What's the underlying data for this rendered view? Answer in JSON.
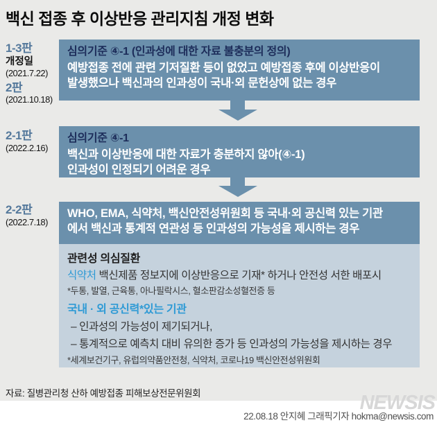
{
  "title": "백신 접종 후 이상반응 관리지침 개정 변화",
  "colors": {
    "background": "#eaeae8",
    "box_blue": "#6b90ac",
    "box_light": "#c5d2dd",
    "navy_text": "#1d2d5a",
    "accent_blue": "#2e9ad5",
    "label_blue": "#55799c",
    "footer_strip": "#ffffff"
  },
  "sections": [
    {
      "labels": [
        {
          "text": "1-3판"
        },
        {
          "text": "개정일"
        },
        {
          "text": "(2021.7.22)"
        },
        {
          "text": "2판"
        },
        {
          "text": "(2021.10.18)"
        }
      ],
      "box": {
        "header": "심의기준 ④-1 (인과성에 대한 자료 불충분의 정의)",
        "body": "예방접종 전에 관련 기저질환 등이 없었고 예방접종 후에 이상반응이\n발생했으나 백신과의 인과성이 국내·외 문헌상에 없는 경우"
      }
    },
    {
      "labels": [
        {
          "text": "2-1판"
        },
        {
          "text": "(2022.2.16)"
        }
      ],
      "box": {
        "header": "심의기준 ④-1",
        "body": "백신과 이상반응에 대한 자료가 충분하지 않아(④-1)\n인과성이 인정되기 어려운 경우"
      }
    },
    {
      "labels": [
        {
          "text": "2-2판"
        },
        {
          "text": "(2022.7.18)"
        }
      ],
      "box": {
        "body": "WHO, EMA, 식약처, 백신안전성위원회 등 국내·외 공신력 있는 기관\n에서 백신과 통계적 연관성 등 인과성의 가능성을 제시하는 경우"
      },
      "detail": {
        "heading": "관련성 의심질환",
        "line1_accent": "식약처",
        "line1_rest": " 백신제품 정보지에 이상반응으로 기재* 하거나 안전성 서한 배포시",
        "footnote1": "*두통, 발열, 근육통, 아나필락시스, 혈소판감소성혈전증 등",
        "subheading": "국내 · 외 공신력*있는 기관",
        "bullet1": "– 인과성의 가능성이 제기되거나,",
        "bullet2": "– 통계적으로 예측치 대비 유의한 증가 등 인과성의 가능성을 제시하는 경우",
        "footnote2": "*세계보건기구, 유럽의약품안전청, 식약처, 코로나19 백신안전성위원회"
      }
    }
  ],
  "footer": {
    "source": "자료: 질병관리청 산하 예방접종 피해보상전문위원회",
    "credit": "22.08.18 안지혜 그래픽기자 hokma@newsis.com",
    "logo": "NEWSIS"
  }
}
